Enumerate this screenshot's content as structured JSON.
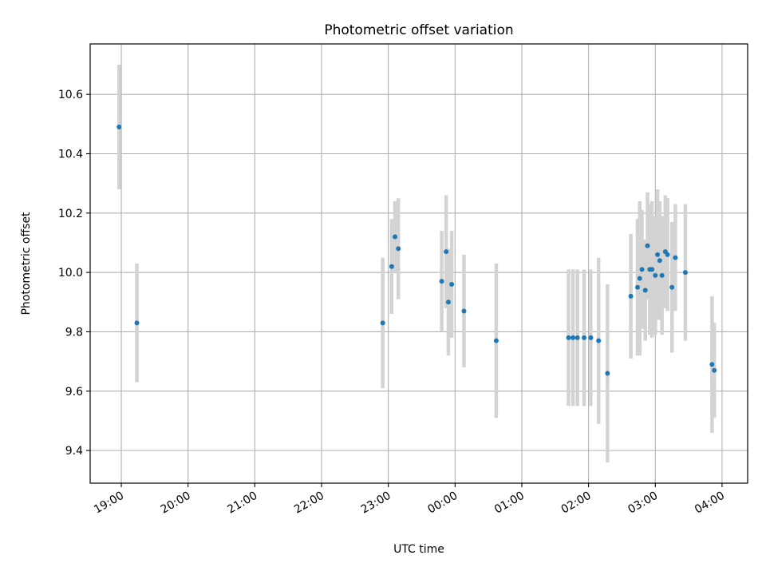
{
  "chart_data": {
    "type": "scatter",
    "title": "Photometric offset variation",
    "xlabel": "UTC time",
    "ylabel": "Photometric offset",
    "xlim": [
      "18:32",
      "04:23"
    ],
    "ylim": [
      9.29,
      10.77
    ],
    "x_ticks": [
      "19:00",
      "20:00",
      "21:00",
      "22:00",
      "23:00",
      "00:00",
      "01:00",
      "02:00",
      "03:00",
      "04:00"
    ],
    "y_ticks": [
      "9.4",
      "9.6",
      "9.8",
      "10.0",
      "10.2",
      "10.4",
      "10.6"
    ],
    "grid": true,
    "errorbar_color": "#d3d3d3",
    "point_color": "#1f77b4",
    "points": [
      {
        "x": "18:58",
        "y": 10.49,
        "err": 0.21
      },
      {
        "x": "19:14",
        "y": 9.83,
        "err": 0.2
      },
      {
        "x": "22:55",
        "y": 9.83,
        "err": 0.22
      },
      {
        "x": "23:03",
        "y": 10.02,
        "err": 0.16
      },
      {
        "x": "23:06",
        "y": 10.12,
        "err": 0.12
      },
      {
        "x": "23:09",
        "y": 10.08,
        "err": 0.17
      },
      {
        "x": "23:48",
        "y": 9.97,
        "err": 0.17
      },
      {
        "x": "23:52",
        "y": 10.07,
        "err": 0.19
      },
      {
        "x": "23:54",
        "y": 9.9,
        "err": 0.18
      },
      {
        "x": "23:57",
        "y": 9.96,
        "err": 0.18
      },
      {
        "x": "00:08",
        "y": 9.87,
        "err": 0.19
      },
      {
        "x": "00:37",
        "y": 9.77,
        "err": 0.26
      },
      {
        "x": "01:42",
        "y": 9.78,
        "err": 0.23
      },
      {
        "x": "01:46",
        "y": 9.78,
        "err": 0.23
      },
      {
        "x": "01:50",
        "y": 9.78,
        "err": 0.23
      },
      {
        "x": "01:56",
        "y": 9.78,
        "err": 0.23
      },
      {
        "x": "02:02",
        "y": 9.78,
        "err": 0.23
      },
      {
        "x": "02:09",
        "y": 9.77,
        "err": 0.28
      },
      {
        "x": "02:17",
        "y": 9.66,
        "err": 0.3
      },
      {
        "x": "02:38",
        "y": 9.92,
        "err": 0.21
      },
      {
        "x": "02:44",
        "y": 9.95,
        "err": 0.23
      },
      {
        "x": "02:46",
        "y": 9.98,
        "err": 0.26
      },
      {
        "x": "02:48",
        "y": 10.01,
        "err": 0.2
      },
      {
        "x": "02:51",
        "y": 9.94,
        "err": 0.17
      },
      {
        "x": "02:53",
        "y": 10.09,
        "err": 0.18
      },
      {
        "x": "02:55",
        "y": 10.01,
        "err": 0.22
      },
      {
        "x": "02:57",
        "y": 10.01,
        "err": 0.23
      },
      {
        "x": "03:00",
        "y": 9.99,
        "err": 0.2
      },
      {
        "x": "03:02",
        "y": 10.06,
        "err": 0.22
      },
      {
        "x": "03:04",
        "y": 10.04,
        "err": 0.2
      },
      {
        "x": "03:06",
        "y": 9.99,
        "err": 0.2
      },
      {
        "x": "03:09",
        "y": 10.07,
        "err": 0.19
      },
      {
        "x": "03:11",
        "y": 10.06,
        "err": 0.19
      },
      {
        "x": "03:15",
        "y": 9.95,
        "err": 0.22
      },
      {
        "x": "03:18",
        "y": 10.05,
        "err": 0.18
      },
      {
        "x": "03:27",
        "y": 10.0,
        "err": 0.23
      },
      {
        "x": "03:51",
        "y": 9.69,
        "err": 0.23
      },
      {
        "x": "03:53",
        "y": 9.67,
        "err": 0.16
      }
    ]
  }
}
